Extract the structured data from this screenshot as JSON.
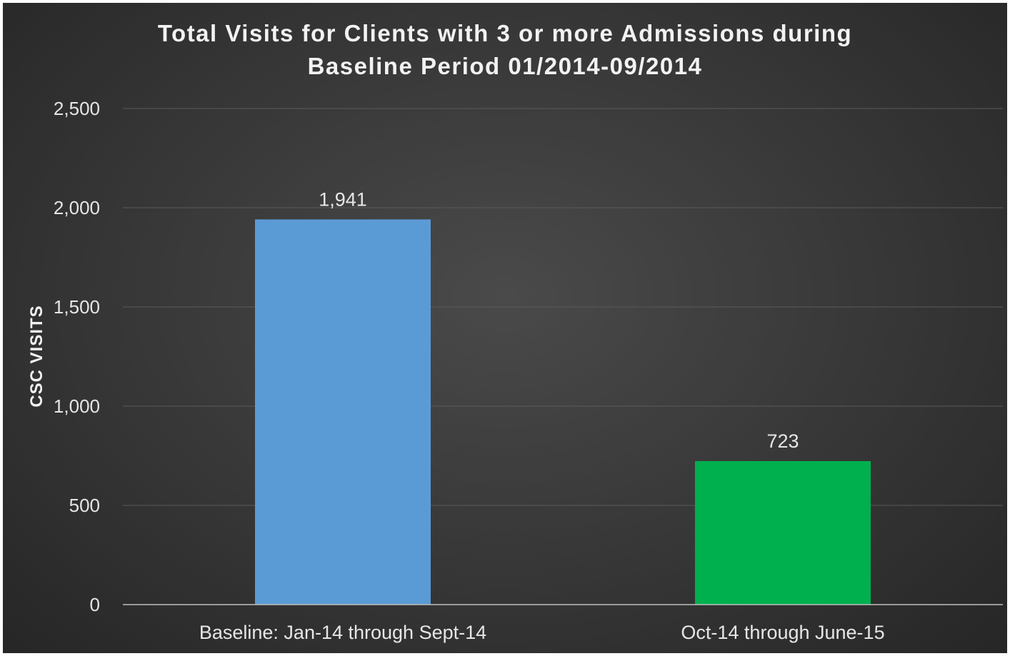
{
  "chart_data": {
    "type": "bar",
    "title_lines": [
      "Total Visits for Clients with 3 or more Admissions during",
      "Baseline Period 01/2014-09/2014"
    ],
    "xlabel": "",
    "ylabel": "CSC VISITS",
    "categories": [
      "Baseline: Jan-14 through Sept-14",
      "Oct-14 through June-15"
    ],
    "values": [
      1941,
      723
    ],
    "data_labels": [
      "1,941",
      "723"
    ],
    "bar_colors": [
      "#5b9bd5",
      "#00b04f"
    ],
    "ylim": [
      0,
      2500
    ],
    "yticks": [
      0,
      500,
      1000,
      1500,
      2000,
      2500
    ],
    "ytick_labels": [
      "0",
      "500",
      "1,000",
      "1,500",
      "2,000",
      "2,500"
    ],
    "grid": true,
    "legend": "none"
  }
}
